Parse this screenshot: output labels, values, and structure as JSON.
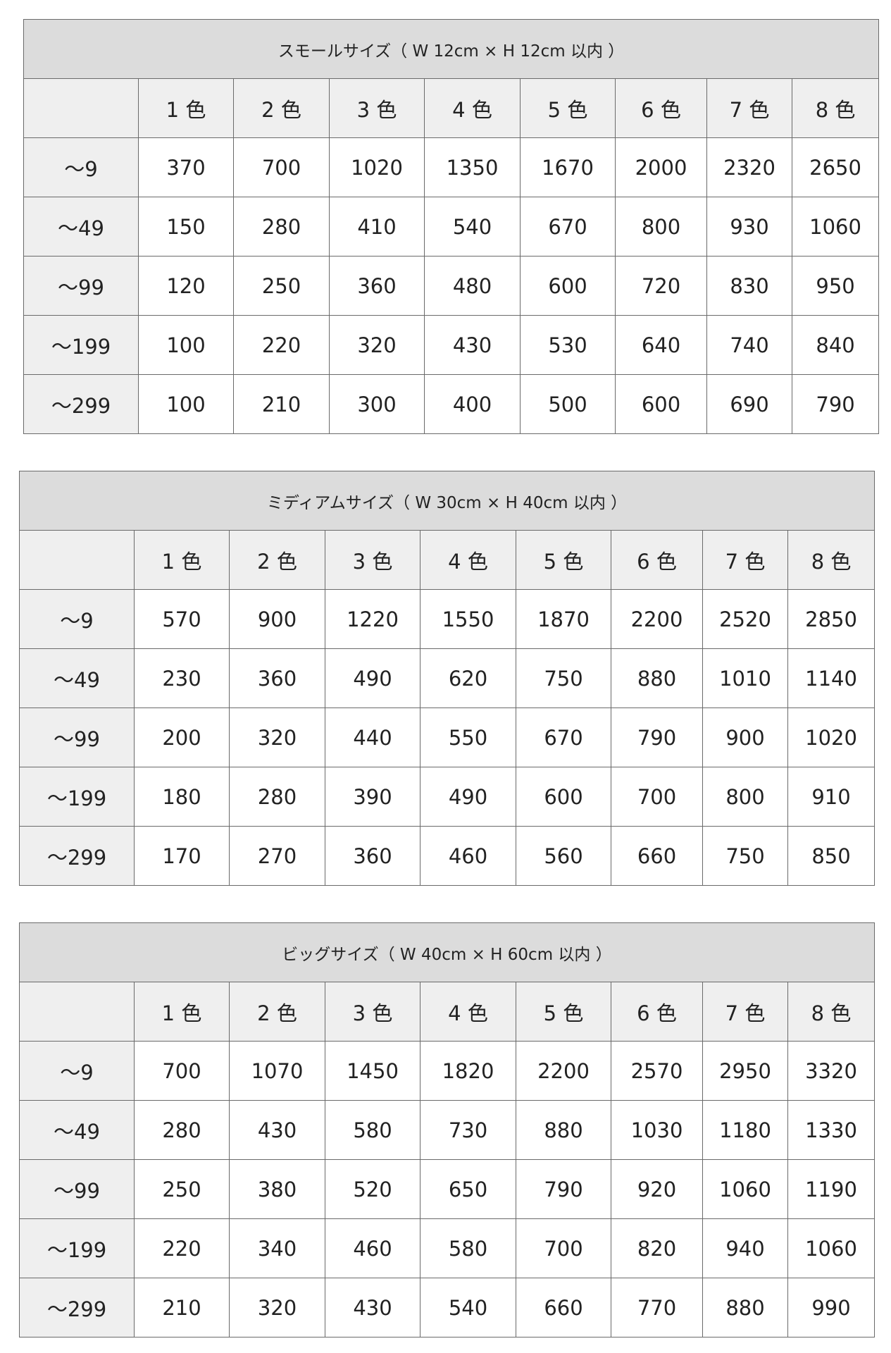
{
  "colors": {
    "title_bg": "#dcdcdc",
    "header_bg": "#efefef",
    "border": "#6a6a6a"
  },
  "tables": [
    {
      "title": "スモールサイズ（ W 12cm × H 12cm 以内 ）",
      "columns": [
        "1 色",
        "2 色",
        "3 色",
        "4 色",
        "5 色",
        "6 色",
        "7 色",
        "8 色"
      ],
      "rows": [
        {
          "label": "〜9",
          "values": [
            "370",
            "700",
            "1020",
            "1350",
            "1670",
            "2000",
            "2320",
            "2650"
          ]
        },
        {
          "label": "〜49",
          "values": [
            "150",
            "280",
            "410",
            "540",
            "670",
            "800",
            "930",
            "1060"
          ]
        },
        {
          "label": "〜99",
          "values": [
            "120",
            "250",
            "360",
            "480",
            "600",
            "720",
            "830",
            "950"
          ]
        },
        {
          "label": "〜199",
          "values": [
            "100",
            "220",
            "320",
            "430",
            "530",
            "640",
            "740",
            "840"
          ]
        },
        {
          "label": "〜299",
          "values": [
            "100",
            "210",
            "300",
            "400",
            "500",
            "600",
            "690",
            "790"
          ]
        }
      ]
    },
    {
      "title": "ミディアムサイズ（ W 30cm × H 40cm 以内 ）",
      "columns": [
        "1 色",
        "2 色",
        "3 色",
        "4 色",
        "5 色",
        "6 色",
        "7 色",
        "8 色"
      ],
      "rows": [
        {
          "label": "〜9",
          "values": [
            "570",
            "900",
            "1220",
            "1550",
            "1870",
            "2200",
            "2520",
            "2850"
          ]
        },
        {
          "label": "〜49",
          "values": [
            "230",
            "360",
            "490",
            "620",
            "750",
            "880",
            "1010",
            "1140"
          ]
        },
        {
          "label": "〜99",
          "values": [
            "200",
            "320",
            "440",
            "550",
            "670",
            "790",
            "900",
            "1020"
          ]
        },
        {
          "label": "〜199",
          "values": [
            "180",
            "280",
            "390",
            "490",
            "600",
            "700",
            "800",
            "910"
          ]
        },
        {
          "label": "〜299",
          "values": [
            "170",
            "270",
            "360",
            "460",
            "560",
            "660",
            "750",
            "850"
          ]
        }
      ]
    },
    {
      "title": "ビッグサイズ（ W 40cm × H 60cm 以内 ）",
      "columns": [
        "1 色",
        "2 色",
        "3 色",
        "4 色",
        "5 色",
        "6 色",
        "7 色",
        "8 色"
      ],
      "rows": [
        {
          "label": "〜9",
          "values": [
            "700",
            "1070",
            "1450",
            "1820",
            "2200",
            "2570",
            "2950",
            "3320"
          ]
        },
        {
          "label": "〜49",
          "values": [
            "280",
            "430",
            "580",
            "730",
            "880",
            "1030",
            "1180",
            "1330"
          ]
        },
        {
          "label": "〜99",
          "values": [
            "250",
            "380",
            "520",
            "650",
            "790",
            "920",
            "1060",
            "1190"
          ]
        },
        {
          "label": "〜199",
          "values": [
            "220",
            "340",
            "460",
            "580",
            "700",
            "820",
            "940",
            "1060"
          ]
        },
        {
          "label": "〜299",
          "values": [
            "210",
            "320",
            "430",
            "540",
            "660",
            "770",
            "880",
            "990"
          ]
        }
      ]
    }
  ]
}
